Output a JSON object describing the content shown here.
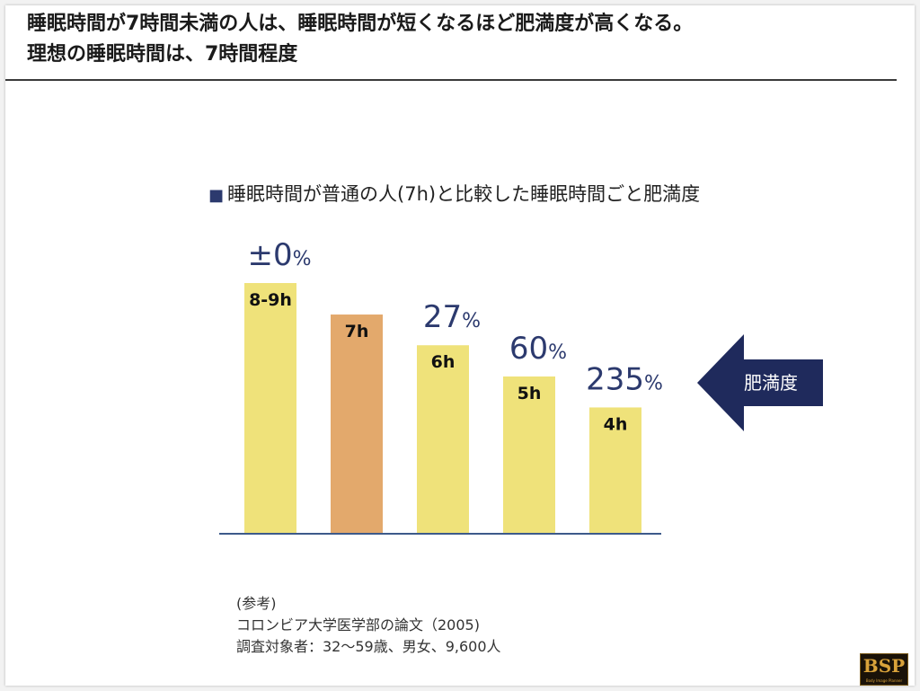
{
  "header": {
    "title_line1": "睡眠時間が7時間未満の人は、睡眠時間が短くなるほど肥満度が高くなる。",
    "title_line2": "理想の睡眠時間は、7時間程度"
  },
  "chart_subtitle": {
    "marker": "■",
    "text": "睡眠時間が普通の人(7h)と比較した睡眠時間ごと肥満度"
  },
  "arrow": {
    "label": "肥満度",
    "color": "#1f2a5c"
  },
  "notes": [
    "(参考)",
    "コロンビア大学医学部の論文（2005)",
    "調査対象者：32〜59歳、男女、9,600人"
  ],
  "logo": {
    "text": "BSP",
    "tagline": "Body Image Planner"
  },
  "colors": {
    "bar_yellow": "#efe27a",
    "bar_orange": "#e3a96c",
    "axis": "#3d5a8a",
    "value_label": "#2c3a6e"
  },
  "chart_data": {
    "type": "bar",
    "title": "睡眠時間が普通の人(7h)と比較した睡眠時間ごと肥満度",
    "categories": [
      "8-9h",
      "7h",
      "6h",
      "5h",
      "4h"
    ],
    "bar_colors": [
      "#efe27a",
      "#e3a96c",
      "#efe27a",
      "#efe27a",
      "#efe27a"
    ],
    "value_labels": [
      {
        "num": "±0",
        "unit": "%"
      },
      null,
      {
        "num": "27",
        "unit": "%"
      },
      {
        "num": "60",
        "unit": "%"
      },
      {
        "num": "235",
        "unit": "%"
      }
    ],
    "relative_heights": [
      1.0,
      0.874,
      0.751,
      0.626,
      0.502
    ],
    "grid": false,
    "legend": "none"
  }
}
